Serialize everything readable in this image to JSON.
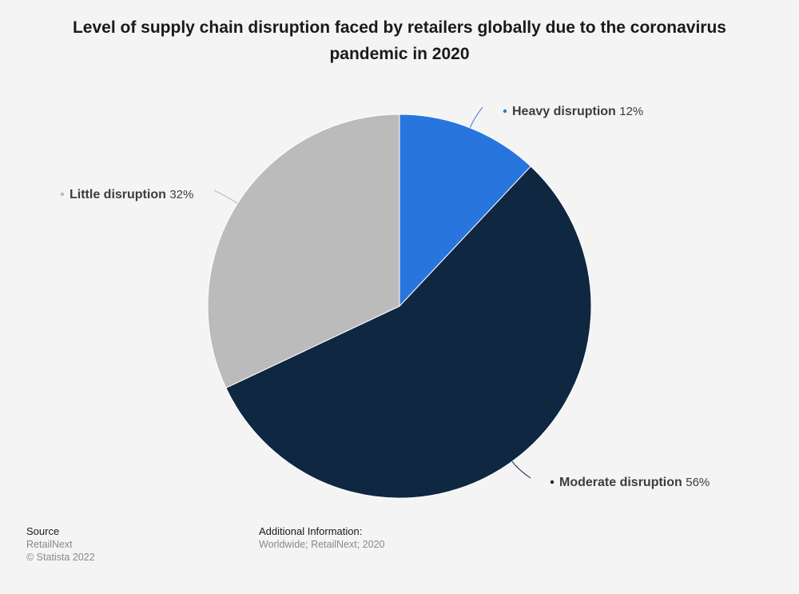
{
  "chart_data": {
    "type": "pie",
    "title": "Level of supply chain disruption faced by retailers globally due to the coronavirus pandemic in 2020",
    "unit": "%",
    "slices": [
      {
        "label": "Heavy disruption",
        "value": 12,
        "color": "#2876dd"
      },
      {
        "label": "Moderate disruption",
        "value": 56,
        "color": "#0f2741"
      },
      {
        "label": "Little disruption",
        "value": 32,
        "color": "#bbbbbb"
      }
    ]
  },
  "footer": {
    "source_heading": "Source",
    "source_name": "RetailNext",
    "copyright": "© Statista 2022",
    "info_heading": "Additional Information:",
    "info_text": "Worldwide; RetailNext; 2020"
  }
}
